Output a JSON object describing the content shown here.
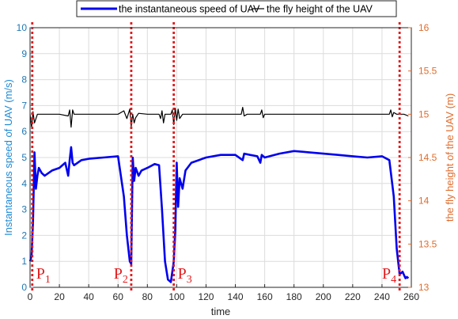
{
  "chart_data": {
    "type": "line",
    "xlabel": "time",
    "ylabel_left": "Instantaneous speed of UAV (m/s)",
    "ylabel_right": "the fly height of the UAV (m)",
    "xlim": [
      0,
      260
    ],
    "ylim_left": [
      0,
      10
    ],
    "ylim_right": [
      13,
      16
    ],
    "x_ticks": [
      "0",
      "20",
      "40",
      "60",
      "80",
      "100",
      "120",
      "140",
      "160",
      "180",
      "200",
      "220",
      "240",
      "260"
    ],
    "y_ticks_left": [
      "0",
      "1",
      "2",
      "3",
      "4",
      "5",
      "6",
      "7",
      "8",
      "9",
      "10"
    ],
    "y_ticks_right": [
      "13",
      "13.5",
      "14",
      "14.5",
      "15",
      "15.5",
      "16"
    ],
    "grid": true,
    "legend_position": "top",
    "colors": {
      "speed": "#0000ee",
      "height": "#000000",
      "markers": "#e31a1c",
      "left_axis": "#1f77b4",
      "right_axis": "#e06c2c"
    },
    "series": [
      {
        "name": "the instantaneous speed of UAV",
        "axis": "left",
        "x": [
          0,
          1,
          2,
          3,
          4,
          5,
          6,
          8,
          10,
          15,
          20,
          24,
          26,
          27,
          28,
          29,
          30,
          35,
          40,
          50,
          60,
          64,
          66,
          68,
          69,
          70,
          71,
          72,
          74,
          76,
          80,
          85,
          88,
          90,
          92,
          94,
          96,
          98,
          99,
          100,
          101,
          102,
          104,
          106,
          110,
          120,
          130,
          140,
          145,
          146,
          150,
          155,
          157,
          158,
          160,
          170,
          180,
          190,
          200,
          210,
          220,
          230,
          240,
          245,
          248,
          250,
          252,
          254,
          256,
          257,
          258
        ],
        "y": [
          1.0,
          1.2,
          2.5,
          5.2,
          3.8,
          4.3,
          4.6,
          4.4,
          4.3,
          4.5,
          4.6,
          4.8,
          4.3,
          4.9,
          5.4,
          4.8,
          4.7,
          4.9,
          4.95,
          5.0,
          5.05,
          3.5,
          2.0,
          1.0,
          0.9,
          5.0,
          4.1,
          4.6,
          4.3,
          4.5,
          4.6,
          4.75,
          4.7,
          3.0,
          1.0,
          0.3,
          0.2,
          1.0,
          2.2,
          4.8,
          3.1,
          4.2,
          3.8,
          4.5,
          4.8,
          5.0,
          5.1,
          5.1,
          4.9,
          5.15,
          5.1,
          5.05,
          4.8,
          5.1,
          5.0,
          5.15,
          5.25,
          5.2,
          5.15,
          5.1,
          5.05,
          5.0,
          5.05,
          4.9,
          3.5,
          1.5,
          0.5,
          0.6,
          0.35,
          0.4,
          0.35
        ]
      },
      {
        "name": "the fly height of the UAV",
        "axis": "right",
        "x": [
          0,
          1,
          2,
          3,
          5,
          10,
          20,
          26,
          27,
          28,
          29,
          30,
          40,
          60,
          64,
          66,
          68,
          69,
          70,
          71,
          72,
          74,
          80,
          88,
          89,
          90,
          91,
          92,
          96,
          97,
          98,
          99,
          100,
          101,
          102,
          104,
          110,
          120,
          140,
          144,
          145,
          146,
          148,
          157,
          158,
          159,
          160,
          170,
          180,
          200,
          220,
          240,
          245,
          246,
          247,
          248,
          250,
          255,
          258
        ],
        "y": [
          15.0,
          14.85,
          15.03,
          14.9,
          15.0,
          15.0,
          15.0,
          14.98,
          15.05,
          14.85,
          15.05,
          15.0,
          15.0,
          15.0,
          15.04,
          14.95,
          15.06,
          14.86,
          15.0,
          14.9,
          14.96,
          15.01,
          15.0,
          15.0,
          14.95,
          15.04,
          14.9,
          15.0,
          15.0,
          15.05,
          14.88,
          15.07,
          14.93,
          15.06,
          14.95,
          15.0,
          15.0,
          15.0,
          15.0,
          15.0,
          15.08,
          14.98,
          15.0,
          15.0,
          15.05,
          14.96,
          15.0,
          15.0,
          15.0,
          15.0,
          15.0,
          15.0,
          15.0,
          15.05,
          14.97,
          15.02,
          15.0,
          15.0,
          14.98
        ]
      }
    ],
    "vlines": [
      {
        "x": 1.5,
        "label": "P",
        "sub": "1"
      },
      {
        "x": 69,
        "label": "P",
        "sub": "2"
      },
      {
        "x": 98,
        "label": "P",
        "sub": "3"
      },
      {
        "x": 252,
        "label": "P",
        "sub": "4"
      }
    ]
  }
}
